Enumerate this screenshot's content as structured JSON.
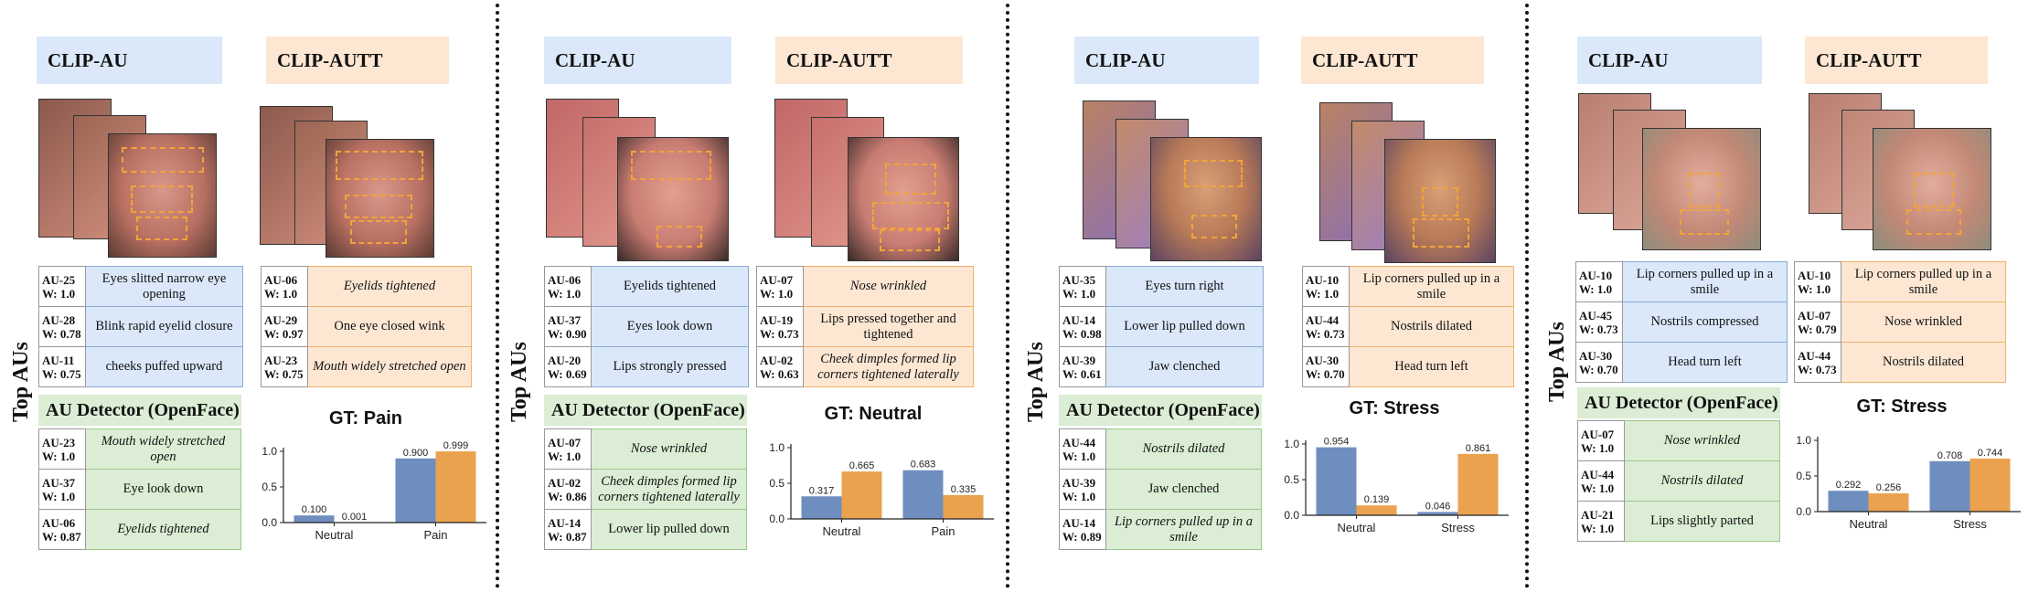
{
  "top_label": "Top AUs",
  "colors": {
    "clip_au_bar": "#6e8ebf",
    "clip_autt_bar": "#eaa24f",
    "header_blue": "#dae8fa",
    "header_orange": "#fde7d3",
    "detector_green": "#dbedd4",
    "dashed_box": "#f2a33a"
  },
  "panels": [
    {
      "clip_au_title": "CLIP-AU",
      "clip_autt_title": "CLIP-AUTT",
      "clip_au": [
        {
          "code": "AU-25",
          "weight": "W: 1.0",
          "desc": "Eyes slitted narrow eye opening"
        },
        {
          "code": "AU-28",
          "weight": "W: 0.78",
          "desc": "Blink rapid eyelid closure"
        },
        {
          "code": "AU-11",
          "weight": "W: 0.75",
          "desc": "cheeks puffed upward"
        }
      ],
      "clip_autt": [
        {
          "code": "AU-06",
          "weight": "W: 1.0",
          "desc": "Eyelids tightened"
        },
        {
          "code": "AU-29",
          "weight": "W: 0.97",
          "desc": "One eye closed wink"
        },
        {
          "code": "AU-23",
          "weight": "W: 0.75",
          "desc": "Mouth widely stretched open"
        }
      ],
      "detector_title": "AU Detector (OpenFace)",
      "detector": [
        {
          "code": "AU-23",
          "weight": "W: 1.0",
          "desc": "Mouth widely stretched open"
        },
        {
          "code": "AU-37",
          "weight": "W: 1.0",
          "desc": "Eye look down"
        },
        {
          "code": "AU-06",
          "weight": "W: 0.87",
          "desc": "Eyelids tightened"
        }
      ],
      "gt_title": "GT: Pain",
      "chart_data": {
        "type": "bar",
        "categories": [
          "Neutral",
          "Pain"
        ],
        "series": [
          {
            "values": [
              0.1,
              0.9
            ],
            "labels": [
              "0.100",
              "0.900"
            ]
          },
          {
            "values": [
              0.001,
              0.999
            ],
            "labels": [
              "0.001",
              "0.999"
            ]
          }
        ],
        "ylim": [
          0,
          1.0
        ],
        "yticks": [
          "0.0",
          "0.5",
          "1.0"
        ]
      }
    },
    {
      "clip_au_title": "CLIP-AU",
      "clip_autt_title": "CLIP-AUTT",
      "clip_au": [
        {
          "code": "AU-06",
          "weight": "W: 1.0",
          "desc": "Eyelids tightened"
        },
        {
          "code": "AU-37",
          "weight": "W: 0.90",
          "desc": "Eyes look down"
        },
        {
          "code": "AU-20",
          "weight": "W: 0.69",
          "desc": "Lips strongly pressed"
        }
      ],
      "clip_autt": [
        {
          "code": "AU-07",
          "weight": "W: 1.0",
          "desc": "Nose wrinkled"
        },
        {
          "code": "AU-19",
          "weight": "W: 0.73",
          "desc": "Lips pressed together and tightened"
        },
        {
          "code": "AU-02",
          "weight": "W: 0.63",
          "desc": "Cheek dimples formed lip corners tightened laterally"
        }
      ],
      "detector_title": "AU Detector (OpenFace)",
      "detector": [
        {
          "code": "AU-07",
          "weight": "W: 1.0",
          "desc": "Nose wrinkled"
        },
        {
          "code": "AU-02",
          "weight": "W: 0.86",
          "desc": "Cheek dimples formed lip corners tightened laterally"
        },
        {
          "code": "AU-14",
          "weight": "W: 0.87",
          "desc": "Lower lip pulled down"
        }
      ],
      "gt_title": "GT: Neutral",
      "chart_data": {
        "type": "bar",
        "categories": [
          "Neutral",
          "Pain"
        ],
        "series": [
          {
            "values": [
              0.317,
              0.683
            ],
            "labels": [
              "0.317",
              "0.683"
            ]
          },
          {
            "values": [
              0.665,
              0.335
            ],
            "labels": [
              "0.665",
              "0.335"
            ]
          }
        ],
        "ylim": [
          0,
          1.0
        ],
        "yticks": [
          "0.0",
          "0.5",
          "1.0"
        ]
      }
    },
    {
      "clip_au_title": "CLIP-AU",
      "clip_autt_title": "CLIP-AUTT",
      "clip_au": [
        {
          "code": "AU-35",
          "weight": "W: 1.0",
          "desc": "Eyes turn right"
        },
        {
          "code": "AU-14",
          "weight": "W: 0.98",
          "desc": "Lower lip pulled down"
        },
        {
          "code": "AU-39",
          "weight": "W: 0.61",
          "desc": "Jaw clenched"
        }
      ],
      "clip_autt": [
        {
          "code": "AU-10",
          "weight": "W: 1.0",
          "desc": "Lip corners pulled up in a smile"
        },
        {
          "code": "AU-44",
          "weight": "W: 0.73",
          "desc": "Nostrils dilated"
        },
        {
          "code": "AU-30",
          "weight": "W: 0.70",
          "desc": "Head turn left"
        }
      ],
      "detector_title": "AU Detector (OpenFace)",
      "detector": [
        {
          "code": "AU-44",
          "weight": "W: 1.0",
          "desc": "Nostrils dilated"
        },
        {
          "code": "AU-39",
          "weight": "W: 1.0",
          "desc": "Jaw clenched"
        },
        {
          "code": "AU-14",
          "weight": "W: 0.89",
          "desc": "Lip corners pulled up in a smile"
        }
      ],
      "gt_title": "GT: Stress",
      "chart_data": {
        "type": "bar",
        "categories": [
          "Neutral",
          "Stress"
        ],
        "series": [
          {
            "values": [
              0.954,
              0.046
            ],
            "labels": [
              "0.954",
              "0.046"
            ]
          },
          {
            "values": [
              0.139,
              0.861
            ],
            "labels": [
              "0.139",
              "0.861"
            ]
          }
        ],
        "ylim": [
          0,
          1.0
        ],
        "yticks": [
          "0.0",
          "0.5",
          "1.0"
        ]
      }
    },
    {
      "clip_au_title": "CLIP-AU",
      "clip_autt_title": "CLIP-AUTT",
      "clip_au": [
        {
          "code": "AU-10",
          "weight": "W: 1.0",
          "desc": "Lip corners pulled up in a smile"
        },
        {
          "code": "AU-45",
          "weight": "W: 0.73",
          "desc": "Nostrils compressed"
        },
        {
          "code": "AU-30",
          "weight": "W: 0.70",
          "desc": "Head turn left"
        }
      ],
      "clip_autt": [
        {
          "code": "AU-10",
          "weight": "W: 1.0",
          "desc": "Lip corners pulled up in a smile"
        },
        {
          "code": "AU-07",
          "weight": "W: 0.79",
          "desc": "Nose wrinkled"
        },
        {
          "code": "AU-44",
          "weight": "W: 0.73",
          "desc": "Nostrils dilated"
        }
      ],
      "detector_title": "AU Detector (OpenFace)",
      "detector": [
        {
          "code": "AU-07",
          "weight": "W: 1.0",
          "desc": "Nose wrinkled"
        },
        {
          "code": "AU-44",
          "weight": "W: 1.0",
          "desc": "Nostrils dilated"
        },
        {
          "code": "AU-21",
          "weight": "W: 1.0",
          "desc": "Lips slightly parted"
        }
      ],
      "gt_title": "GT: Stress",
      "chart_data": {
        "type": "bar",
        "categories": [
          "Neutral",
          "Stress"
        ],
        "series": [
          {
            "values": [
              0.292,
              0.708
            ],
            "labels": [
              "0.292",
              "0.708"
            ]
          },
          {
            "values": [
              0.256,
              0.744
            ],
            "labels": [
              "0.256",
              "0.744"
            ]
          }
        ],
        "ylim": [
          0,
          1.0
        ],
        "yticks": [
          "0.0",
          "0.5",
          "1.0"
        ]
      }
    }
  ]
}
